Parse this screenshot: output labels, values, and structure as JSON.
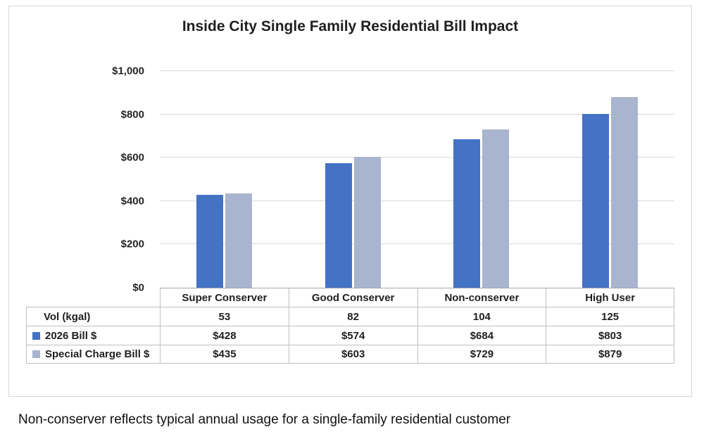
{
  "title": "Inside City Single Family Residential Bill Impact",
  "footer": "Non-conserver reflects typical annual usage for a single-family residential customer",
  "chart_data": {
    "type": "bar",
    "title": "Inside City Single Family Residential Bill Impact",
    "categories": [
      "Super Conserver",
      "Good Conserver",
      "Non-conserver",
      "High User"
    ],
    "series": [
      {
        "name": "2026 Bill $",
        "color": "#4472C4",
        "values": [
          428,
          574,
          684,
          803
        ]
      },
      {
        "name": "Special Charge Bill $",
        "color": "#A9B4CE",
        "values": [
          435,
          603,
          729,
          879
        ]
      }
    ],
    "xlabel": "",
    "ylabel": "",
    "ylim": [
      0,
      1000
    ],
    "ytick_interval": 200,
    "ytick_labels": [
      "$0",
      "$200",
      "$400",
      "$600",
      "$800",
      "$1,000"
    ],
    "grid": true,
    "legend_position": "table-left-column",
    "table": {
      "rows": [
        {
          "label": "Vol (kgal)",
          "swatch": null,
          "values": [
            "53",
            "82",
            "104",
            "125"
          ]
        },
        {
          "label": "2026 Bill $",
          "swatch": "#4472C4",
          "values": [
            "$428",
            "$574",
            "$684",
            "$803"
          ]
        },
        {
          "label": "Special Charge Bill $",
          "swatch": "#A9B4CE",
          "values": [
            "$435",
            "$603",
            "$729",
            "$879"
          ]
        }
      ]
    }
  }
}
